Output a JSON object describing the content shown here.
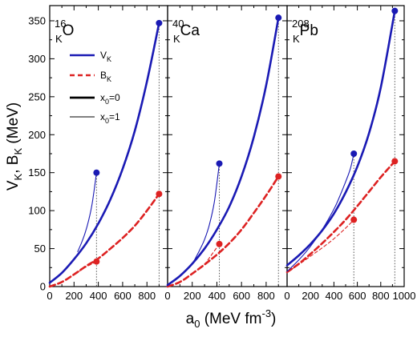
{
  "chart_data": {
    "type": "line",
    "xlabel": {
      "main": "a",
      "sub": "0",
      "unit_prefix": " (MeV fm",
      "unit_sup": "-3",
      "unit_suffix": ")"
    },
    "ylabel": {
      "v": "V",
      "v_sub": "K",
      "sep": ", ",
      "b": "B",
      "b_sub": "K",
      "unit": " (MeV)"
    },
    "ylim": [
      0,
      370
    ],
    "yticks": [
      0,
      50,
      100,
      150,
      200,
      250,
      300,
      350
    ],
    "grid": false,
    "legend": {
      "placement": "top-left of first panel",
      "entries": [
        {
          "main": "V",
          "sub": "K",
          "line": "solid",
          "color": "#1a1ab4"
        },
        {
          "main": "B",
          "sub": "K",
          "line": "dashed",
          "color": "#dd2222"
        },
        {
          "main": "x",
          "sub": "0",
          "rest": "=0",
          "line": "thick",
          "color": "#000000"
        },
        {
          "main": "x",
          "sub": "0",
          "rest": "=1",
          "line": "thin",
          "color": "#000000"
        }
      ]
    },
    "colors": {
      "V": "#1a1ab4",
      "B": "#dd2222",
      "guide": "#555555"
    },
    "panels": [
      {
        "label": {
          "mass": "16",
          "sub": "K",
          "element": "O"
        },
        "xlim": [
          0,
          970
        ],
        "xticks": [
          0,
          200,
          400,
          600,
          800
        ],
        "V_x0": {
          "x": [
            0,
            100,
            200,
            300,
            400,
            500,
            600,
            700,
            800,
            900
          ],
          "y": [
            5,
            18,
            36,
            57,
            83,
            115,
            155,
            205,
            270,
            347
          ]
        },
        "V_x1": {
          "x": [
            230,
            260,
            290,
            320,
            350,
            385
          ],
          "y": [
            46,
            57,
            70,
            87,
            110,
            150
          ]
        },
        "B_x0": {
          "x": [
            0,
            100,
            200,
            300,
            400,
            500,
            600,
            700,
            800,
            900
          ],
          "y": [
            0,
            6,
            16,
            27,
            37,
            50,
            64,
            80,
            100,
            122
          ]
        },
        "B_x1": {
          "x": [
            200,
            250,
            300,
            350,
            385
          ],
          "y": [
            16,
            21,
            26,
            30,
            33
          ]
        },
        "V_end_x0": [
          900,
          347
        ],
        "V_end_x1": [
          385,
          150
        ],
        "B_end_x0": [
          900,
          122
        ],
        "B_end_x1": [
          385,
          33
        ]
      },
      {
        "label": {
          "mass": "40",
          "sub": "K",
          "element": "Ca"
        },
        "xlim": [
          0,
          970
        ],
        "xticks": [
          0,
          200,
          400,
          600,
          800
        ],
        "V_x0": {
          "x": [
            0,
            100,
            200,
            300,
            400,
            500,
            600,
            700,
            800,
            900
          ],
          "y": [
            2,
            14,
            30,
            50,
            75,
            105,
            145,
            197,
            265,
            354
          ]
        },
        "V_x1": {
          "x": [
            215,
            260,
            300,
            340,
            380,
            420
          ],
          "y": [
            34,
            48,
            62,
            82,
            112,
            162
          ]
        },
        "B_x0": {
          "x": [
            0,
            100,
            200,
            300,
            400,
            500,
            600,
            700,
            800,
            900
          ],
          "y": [
            0,
            6,
            17,
            29,
            42,
            57,
            75,
            97,
            120,
            145
          ]
        },
        "B_x1": {
          "x": [
            300,
            340,
            380,
            420
          ],
          "y": [
            29,
            38,
            47,
            56
          ]
        },
        "V_end_x0": [
          900,
          354
        ],
        "V_end_x1": [
          420,
          162
        ],
        "B_end_x0": [
          900,
          145
        ],
        "B_end_x1": [
          420,
          56
        ]
      },
      {
        "label": {
          "mass": "208",
          "sub": "K",
          "element": "Pb"
        },
        "xlim": [
          0,
          1000
        ],
        "xticks": [
          0,
          200,
          400,
          600,
          800,
          1000
        ],
        "V_x0": {
          "x": [
            0,
            100,
            200,
            300,
            400,
            500,
            600,
            700,
            800,
            920
          ],
          "y": [
            28,
            41,
            56,
            74,
            96,
            124,
            158,
            202,
            262,
            363
          ]
        },
        "V_x1": {
          "x": [
            0,
            100,
            200,
            300,
            400,
            450,
            500,
            540,
            570
          ],
          "y": [
            20,
            35,
            53,
            75,
            102,
            119,
            138,
            155,
            175
          ]
        },
        "B_x0": {
          "x": [
            0,
            100,
            200,
            300,
            400,
            500,
            600,
            700,
            800,
            920
          ],
          "y": [
            19,
            30,
            43,
            57,
            72,
            88,
            106,
            125,
            144,
            165
          ]
        },
        "B_x1": {
          "x": [
            0,
            100,
            200,
            300,
            400,
            500,
            570
          ],
          "y": [
            19,
            29,
            40,
            51,
            63,
            77,
            88
          ]
        },
        "V_end_x0": [
          920,
          363
        ],
        "V_end_x1": [
          570,
          175
        ],
        "B_end_x0": [
          920,
          165
        ],
        "B_end_x1": [
          570,
          88
        ]
      }
    ]
  }
}
